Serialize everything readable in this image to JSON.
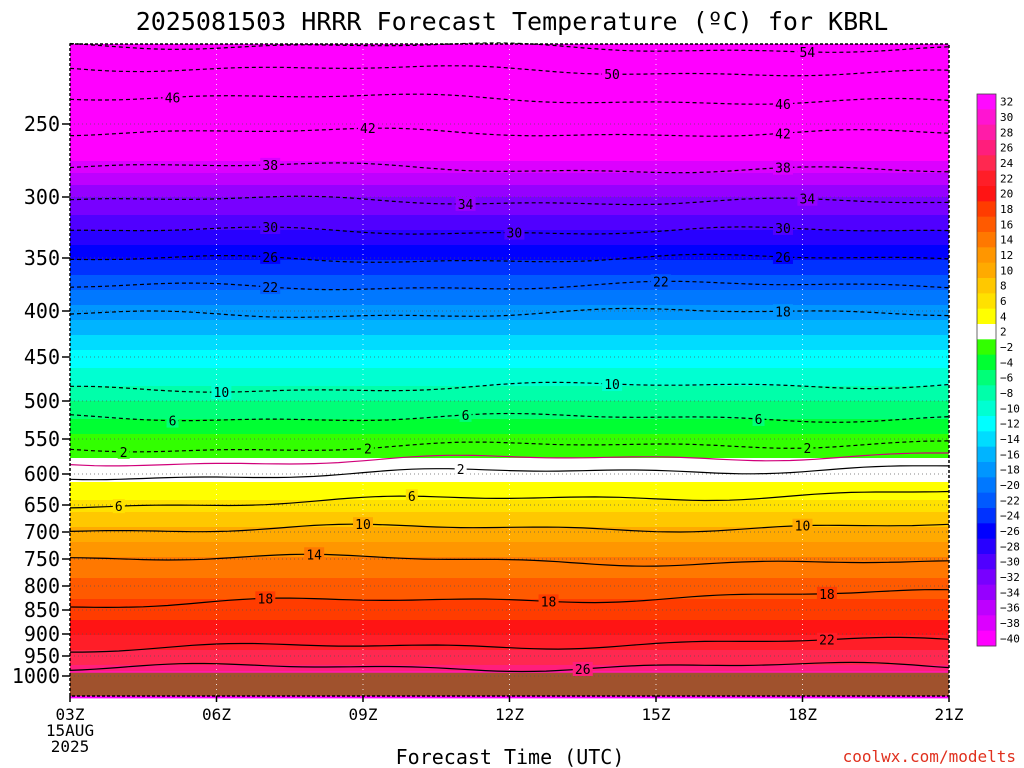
{
  "chart_data": {
    "type": "heatmap",
    "title": "2025081503 HRRR Forecast Temperature (ºC) for KBRL",
    "xlabel": "Forecast Time (UTC)",
    "ylabel": "",
    "credit": "coolwx.com/modelts",
    "x_ticks": [
      {
        "hour": 0,
        "label": "03Z",
        "sub1": "15AUG",
        "sub2": "2025"
      },
      {
        "hour": 3,
        "label": "06Z"
      },
      {
        "hour": 6,
        "label": "09Z"
      },
      {
        "hour": 9,
        "label": "12Z"
      },
      {
        "hour": 12,
        "label": "15Z"
      },
      {
        "hour": 15,
        "label": "18Z"
      },
      {
        "hour": 18,
        "label": "21Z"
      }
    ],
    "y_ticks": [
      1000,
      950,
      900,
      850,
      800,
      750,
      700,
      650,
      600,
      550,
      500,
      450,
      400,
      350,
      300,
      250
    ],
    "ylim_hPa": [
      1040,
      200
    ],
    "xlim_hours": [
      0,
      18
    ],
    "surface_pressure_hPa": 992,
    "colorbar_labels": [
      "32",
      "30",
      "28",
      "26",
      "24",
      "22",
      "20",
      "18",
      "16",
      "14",
      "12",
      "10",
      "8",
      "6",
      "4",
      "2",
      "−2",
      "−4",
      "−6",
      "−8",
      "−10",
      "−12",
      "−14",
      "−16",
      "−18",
      "−20",
      "−22",
      "−24",
      "−26",
      "−28",
      "−30",
      "−32",
      "−34",
      "−36",
      "−38",
      "−40"
    ],
    "colorbar_bins": [
      {
        "t": 32,
        "color": "#ff0aff"
      },
      {
        "t": 30,
        "color": "#ff14d2"
      },
      {
        "t": 28,
        "color": "#ff1ca8"
      },
      {
        "t": 26,
        "color": "#ff1e7c"
      },
      {
        "t": 24,
        "color": "#ff2850"
      },
      {
        "t": 22,
        "color": "#ff1e28"
      },
      {
        "t": 20,
        "color": "#ff1414"
      },
      {
        "t": 18,
        "color": "#ff3c00"
      },
      {
        "t": 16,
        "color": "#ff5a00"
      },
      {
        "t": 14,
        "color": "#ff7800"
      },
      {
        "t": 12,
        "color": "#ff9600"
      },
      {
        "t": 10,
        "color": "#ffaa00"
      },
      {
        "t": 8,
        "color": "#ffc800"
      },
      {
        "t": 6,
        "color": "#ffe100"
      },
      {
        "t": 4,
        "color": "#ffff00"
      },
      {
        "t": 2,
        "color": "#ffffff"
      },
      {
        "t": -2,
        "color": "#32ff00"
      },
      {
        "t": -4,
        "color": "#00ff32"
      },
      {
        "t": -6,
        "color": "#00ff78"
      },
      {
        "t": -8,
        "color": "#00ffaa"
      },
      {
        "t": -10,
        "color": "#00ffd2"
      },
      {
        "t": -12,
        "color": "#00ffff"
      },
      {
        "t": -14,
        "color": "#00dcff"
      },
      {
        "t": -16,
        "color": "#00b4ff"
      },
      {
        "t": -18,
        "color": "#0096ff"
      },
      {
        "t": -20,
        "color": "#0078ff"
      },
      {
        "t": -22,
        "color": "#005aff"
      },
      {
        "t": -24,
        "color": "#0032ff"
      },
      {
        "t": -26,
        "color": "#0000ff"
      },
      {
        "t": -28,
        "color": "#2800ff"
      },
      {
        "t": -30,
        "color": "#5000ff"
      },
      {
        "t": -32,
        "color": "#7800ff"
      },
      {
        "t": -34,
        "color": "#9600ff"
      },
      {
        "t": -36,
        "color": "#be00ff"
      },
      {
        "t": -38,
        "color": "#dc00ff"
      },
      {
        "t": -40,
        "color": "#ff00ff"
      }
    ],
    "temperature_profile": [
      {
        "p": 992,
        "t": 28
      },
      {
        "p": 970,
        "t": 25
      },
      {
        "p": 950,
        "t": 24
      },
      {
        "p": 925,
        "t": 22.5
      },
      {
        "p": 900,
        "t": 21
      },
      {
        "p": 875,
        "t": 19.5
      },
      {
        "p": 850,
        "t": 18
      },
      {
        "p": 800,
        "t": 16
      },
      {
        "p": 750,
        "t": 13.5
      },
      {
        "p": 700,
        "t": 10
      },
      {
        "p": 650,
        "t": 6
      },
      {
        "p": 600,
        "t": 2
      },
      {
        "p": 575,
        "t": 0
      },
      {
        "p": 550,
        "t": -2
      },
      {
        "p": 500,
        "t": -7
      },
      {
        "p": 450,
        "t": -12
      },
      {
        "p": 400,
        "t": -18
      },
      {
        "p": 350,
        "t": -25
      },
      {
        "p": 300,
        "t": -33
      },
      {
        "p": 250,
        "t": -45
      },
      {
        "p": 200,
        "t": -58
      }
    ],
    "isotherms": [
      {
        "t": 26,
        "style": "solid",
        "p_left": 980,
        "p_right": 975,
        "labels": [
          {
            "hour": 10.5,
            "text": "26"
          }
        ]
      },
      {
        "t": 22,
        "style": "solid",
        "p_left": 935,
        "p_right": 915,
        "labels": [
          {
            "hour": 15.5,
            "text": "22"
          }
        ]
      },
      {
        "t": 18,
        "style": "solid",
        "p_left": 840,
        "p_right": 815,
        "labels": [
          {
            "hour": 4,
            "text": "18"
          },
          {
            "hour": 9.8,
            "text": "18"
          },
          {
            "hour": 15.5,
            "text": "18"
          }
        ]
      },
      {
        "t": 14,
        "style": "solid",
        "p_left": 745,
        "p_right": 760,
        "labels": [
          {
            "hour": 5,
            "text": "14"
          }
        ]
      },
      {
        "t": 10,
        "style": "solid",
        "p_left": 695,
        "p_right": 690,
        "labels": [
          {
            "hour": 6,
            "text": "10"
          },
          {
            "hour": 15,
            "text": "10"
          }
        ]
      },
      {
        "t": 6,
        "style": "solid",
        "p_left": 650,
        "p_right": 630,
        "labels": [
          {
            "hour": 1,
            "text": "6"
          },
          {
            "hour": 7,
            "text": "6"
          }
        ]
      },
      {
        "t": 2,
        "style": "solid",
        "p_left": 605,
        "p_right": 590,
        "labels": [
          {
            "hour": 8,
            "text": "2"
          }
        ]
      },
      {
        "t": 0,
        "style": "magenta",
        "p_left": 585,
        "p_right": 572,
        "labels": []
      },
      {
        "t": -2,
        "style": "dashed",
        "p_left": 565,
        "p_right": 555,
        "labels": [
          {
            "hour": 1.1,
            "text": "2"
          },
          {
            "hour": 6.1,
            "text": "2"
          },
          {
            "hour": 15.1,
            "text": "2"
          }
        ]
      },
      {
        "t": -6,
        "style": "dashed",
        "p_left": 522,
        "p_right": 522,
        "labels": [
          {
            "hour": 2.1,
            "text": "6"
          },
          {
            "hour": 8.1,
            "text": "6"
          },
          {
            "hour": 14.1,
            "text": "6"
          }
        ]
      },
      {
        "t": -10,
        "style": "dashed",
        "p_left": 488,
        "p_right": 480,
        "labels": [
          {
            "hour": 3.1,
            "text": "10"
          },
          {
            "hour": 11.1,
            "text": "10"
          }
        ]
      },
      {
        "t": -18,
        "style": "dashed",
        "p_left": 405,
        "p_right": 400,
        "labels": [
          {
            "hour": 14.6,
            "text": "18"
          }
        ]
      },
      {
        "t": -22,
        "style": "dashed",
        "p_left": 378,
        "p_right": 375,
        "labels": [
          {
            "hour": 4.1,
            "text": "22"
          },
          {
            "hour": 12.1,
            "text": "22"
          }
        ]
      },
      {
        "t": -26,
        "style": "dashed",
        "p_left": 352,
        "p_right": 350,
        "labels": [
          {
            "hour": 4.1,
            "text": "26"
          },
          {
            "hour": 14.6,
            "text": "26"
          }
        ]
      },
      {
        "t": -30,
        "style": "dashed",
        "p_left": 328,
        "p_right": 328,
        "labels": [
          {
            "hour": 4.1,
            "text": "30"
          },
          {
            "hour": 9.1,
            "text": "30"
          },
          {
            "hour": 14.6,
            "text": "30"
          }
        ]
      },
      {
        "t": -34,
        "style": "dashed",
        "p_left": 302,
        "p_right": 305,
        "labels": [
          {
            "hour": 8.1,
            "text": "34"
          },
          {
            "hour": 15.1,
            "text": "34"
          }
        ]
      },
      {
        "t": -38,
        "style": "dashed",
        "p_left": 278,
        "p_right": 283,
        "labels": [
          {
            "hour": 4.1,
            "text": "38"
          },
          {
            "hour": 14.6,
            "text": "38"
          }
        ]
      },
      {
        "t": -42,
        "style": "dashed",
        "p_left": 255,
        "p_right": 257,
        "labels": [
          {
            "hour": 6.1,
            "text": "42"
          },
          {
            "hour": 14.6,
            "text": "42"
          }
        ]
      },
      {
        "t": -46,
        "style": "dashed",
        "p_left": 232,
        "p_right": 237,
        "labels": [
          {
            "hour": 2.1,
            "text": "46"
          },
          {
            "hour": 14.6,
            "text": "46"
          }
        ]
      },
      {
        "t": -50,
        "style": "dashed",
        "p_left": 214,
        "p_right": 219,
        "labels": [
          {
            "hour": 11.1,
            "text": "50"
          }
        ]
      },
      {
        "t": -54,
        "style": "dashed",
        "p_left": 200,
        "p_right": 204,
        "labels": [
          {
            "hour": 15.1,
            "text": "54"
          }
        ]
      }
    ]
  }
}
